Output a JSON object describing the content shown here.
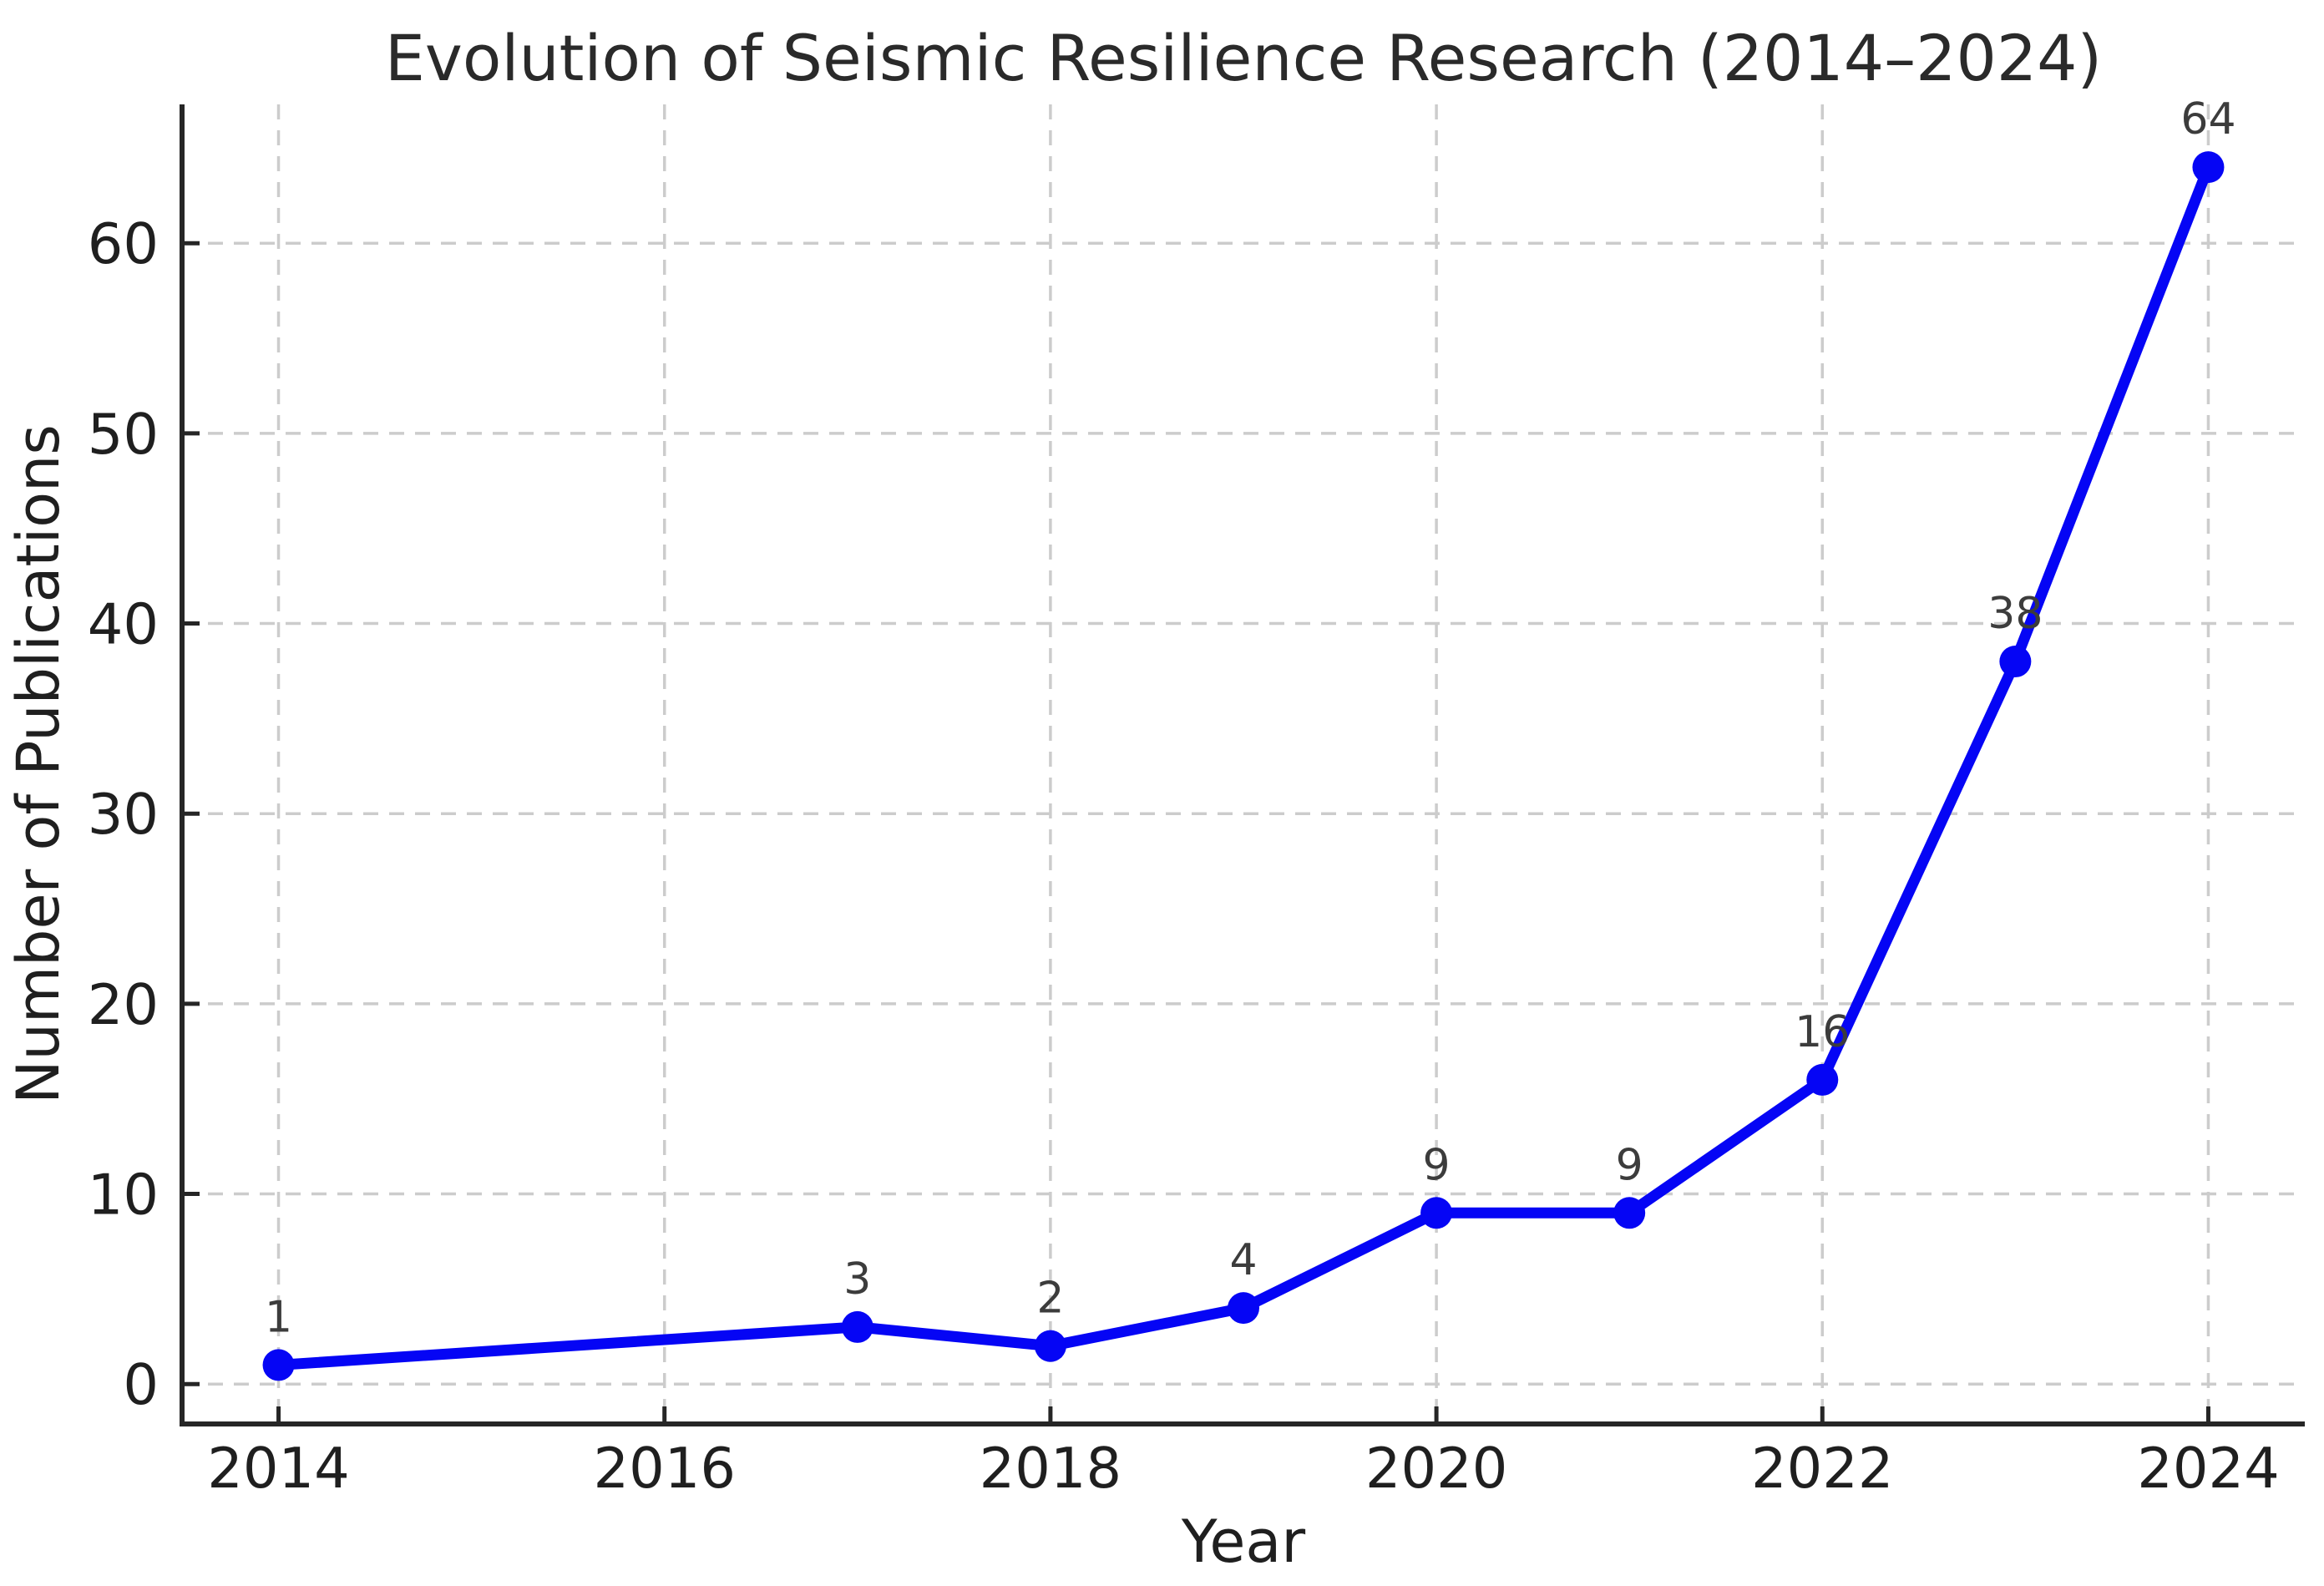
{
  "figure": {
    "background": "#ffffff"
  },
  "chart_data": {
    "type": "line",
    "title": "Evolution of Seismic Resilience Research (2014–2024)",
    "xlabel": "Year",
    "ylabel": "Number of Publications",
    "x": [
      2014,
      2017,
      2018,
      2019,
      2020,
      2021,
      2022,
      2023,
      2024
    ],
    "y": [
      1,
      3,
      2,
      4,
      9,
      9,
      16,
      38,
      64
    ],
    "point_labels": [
      "1",
      "3",
      "2",
      "4",
      "9",
      "9",
      "16",
      "38",
      "64"
    ],
    "xticks": [
      2014,
      2016,
      2018,
      2020,
      2022,
      2024
    ],
    "xtick_labels": [
      "2014",
      "2016",
      "2018",
      "2020",
      "2022",
      "2024"
    ],
    "yticks": [
      0,
      10,
      20,
      30,
      40,
      50,
      60
    ],
    "ytick_labels": [
      "0",
      "10",
      "20",
      "30",
      "40",
      "50",
      "60"
    ],
    "xlim": [
      2013.5,
      2024.5
    ],
    "ylim": [
      -2.1,
      67.3
    ],
    "grid": true,
    "grid_style": "dashed",
    "legend": false,
    "line_color": "#0505f5",
    "marker": "circle",
    "marker_color": "#0505f5",
    "grid_color": "#cccccc",
    "axis_color": "#262626",
    "tick_label_color": "#1f1f1f",
    "axis_label_color": "#1f1f1f",
    "title_color": "#2a2a2a",
    "data_label_color": "#3c3c3c"
  }
}
